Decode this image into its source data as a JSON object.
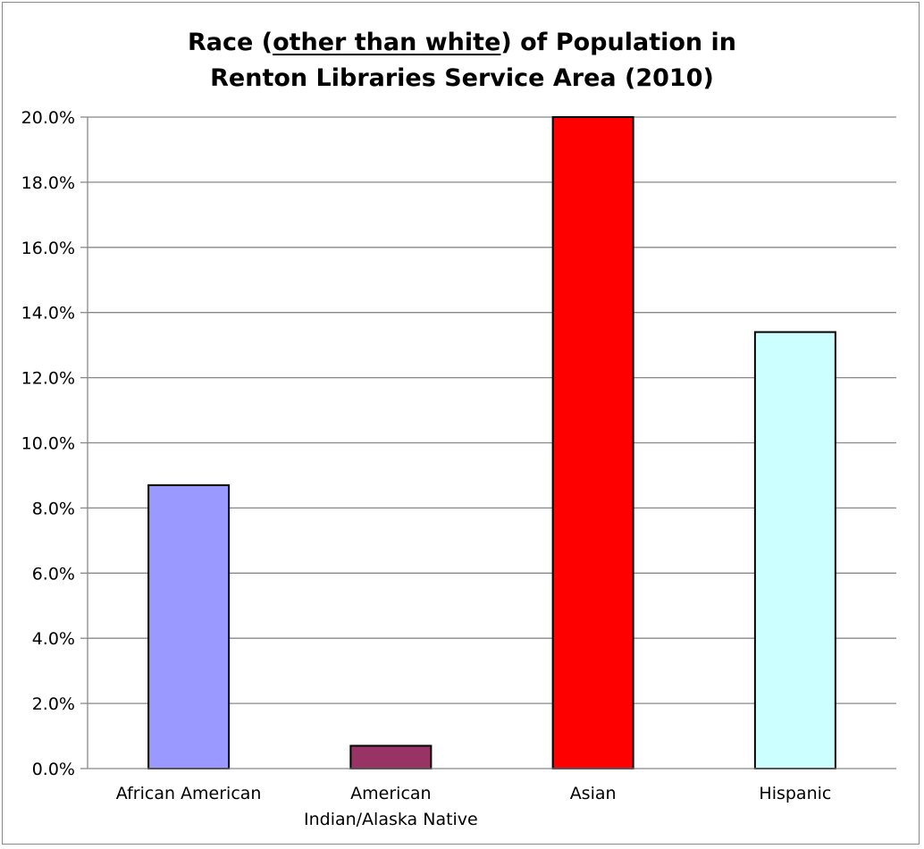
{
  "chart_data": {
    "type": "bar",
    "title": {
      "prefix": "Race (",
      "underlined": "other than white",
      "suffix": ") of Population in",
      "line2": "Renton Libraries Service Area (2010)"
    },
    "xlabel": "",
    "ylabel": "",
    "categories": [
      [
        "African American"
      ],
      [
        "American",
        "Indian/Alaska Native"
      ],
      [
        "Asian"
      ],
      [
        "Hispanic"
      ]
    ],
    "values": [
      8.7,
      0.7,
      20.0,
      13.4
    ],
    "colors": [
      "#9999ff",
      "#993366",
      "#ff0000",
      "#ccffff"
    ],
    "ylim": [
      0,
      20
    ],
    "yticks": [
      "0.0%",
      "2.0%",
      "4.0%",
      "6.0%",
      "8.0%",
      "10.0%",
      "12.0%",
      "14.0%",
      "16.0%",
      "18.0%",
      "20.0%"
    ],
    "grid": true,
    "legend": "none"
  }
}
